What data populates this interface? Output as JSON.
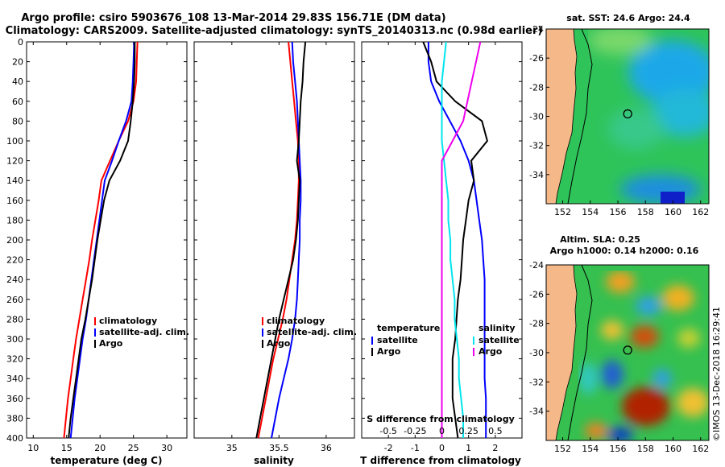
{
  "title": {
    "line1": "Argo profile: csiro 5903676_108 13-Mar-2014 29.83S 156.71E (DM data)",
    "line2": "Climatology: CARS2009. Satellite-adjusted climatology: synTS_20140313.nc (0.98d earlier)"
  },
  "watermark": "©IMOS 13-Dec-2018 16:29:41",
  "colors": {
    "climatology": "#ff0000",
    "satellite": "#0000ff",
    "argo": "#000000",
    "sat_s": "#00e5ee",
    "clim_s": "#ee00ee",
    "land": "#f5b888"
  },
  "chart_data": [
    {
      "id": "temperature",
      "type": "line",
      "xlabel": "temperature (deg C)",
      "xlim": [
        9,
        33
      ],
      "xticks": [
        10,
        15,
        20,
        25,
        30
      ],
      "ylim": [
        0,
        400
      ],
      "yticks": [
        0,
        20,
        40,
        60,
        80,
        100,
        120,
        140,
        160,
        180,
        200,
        220,
        240,
        260,
        280,
        300,
        320,
        340,
        360,
        380,
        400
      ],
      "legend": [
        "climatology",
        "satellite-adj. clim.",
        "Argo"
      ],
      "series": [
        {
          "name": "climatology",
          "color": "#ff0000",
          "x": [
            25.6,
            25.5,
            25.4,
            25.0,
            24.2,
            22.8,
            21.5,
            20.2,
            19.8,
            19.3,
            18.8,
            18.4,
            17.9,
            17.4,
            16.9,
            16.4,
            16.0,
            15.6,
            15.2,
            14.9,
            14.6
          ],
          "y": [
            0,
            20,
            40,
            60,
            80,
            100,
            120,
            140,
            160,
            180,
            200,
            220,
            240,
            260,
            280,
            300,
            320,
            340,
            360,
            380,
            400
          ]
        },
        {
          "name": "satellite-adj. clim.",
          "color": "#0000ff",
          "x": [
            25.1,
            25.0,
            24.9,
            24.7,
            23.9,
            22.8,
            21.8,
            20.7,
            20.3,
            19.9,
            19.5,
            19.1,
            18.7,
            18.3,
            17.9,
            17.4,
            17.0,
            16.6,
            16.2,
            15.9,
            15.6
          ],
          "y": [
            0,
            20,
            40,
            60,
            80,
            100,
            120,
            140,
            160,
            180,
            200,
            220,
            240,
            260,
            280,
            300,
            320,
            340,
            360,
            380,
            400
          ]
        },
        {
          "name": "Argo",
          "color": "#000000",
          "x": [
            25.2,
            25.2,
            25.1,
            24.9,
            24.6,
            24.2,
            23.0,
            21.4,
            20.6,
            20.1,
            19.6,
            19.2,
            18.8,
            18.3,
            17.8,
            17.2,
            16.8,
            16.4,
            16.0,
            15.6,
            15.3
          ],
          "y": [
            0,
            20,
            40,
            60,
            80,
            100,
            120,
            140,
            160,
            180,
            200,
            220,
            240,
            260,
            280,
            300,
            320,
            340,
            360,
            380,
            400
          ]
        }
      ]
    },
    {
      "id": "salinity",
      "type": "line",
      "xlabel": "salinity",
      "xlim": [
        34.6,
        36.3
      ],
      "xticks": [
        35,
        35.5,
        36
      ],
      "ticklabels": [
        "35",
        "35.5",
        "36"
      ],
      "ylim": [
        0,
        400
      ],
      "legend": [
        "climatology",
        "satellite-adj. clim.",
        "Argo"
      ],
      "series": [
        {
          "name": "climatology",
          "color": "#ff0000",
          "x": [
            35.6,
            35.62,
            35.64,
            35.66,
            35.68,
            35.7,
            35.71,
            35.71,
            35.7,
            35.69,
            35.67,
            35.64,
            35.61,
            35.58,
            35.54,
            35.49,
            35.44,
            35.4,
            35.36,
            35.32,
            35.28
          ],
          "y": [
            0,
            20,
            40,
            60,
            80,
            100,
            120,
            140,
            160,
            180,
            200,
            220,
            240,
            260,
            280,
            300,
            320,
            340,
            360,
            380,
            400
          ]
        },
        {
          "name": "satellite-adj. clim.",
          "color": "#0000ff",
          "x": [
            35.64,
            35.65,
            35.67,
            35.69,
            35.7,
            35.71,
            35.72,
            35.73,
            35.73,
            35.72,
            35.72,
            35.71,
            35.7,
            35.69,
            35.67,
            35.64,
            35.6,
            35.55,
            35.5,
            35.46,
            35.42
          ],
          "y": [
            0,
            20,
            40,
            60,
            80,
            100,
            120,
            140,
            160,
            180,
            200,
            220,
            240,
            260,
            280,
            300,
            320,
            340,
            360,
            380,
            400
          ]
        },
        {
          "name": "Argo",
          "color": "#000000",
          "x": [
            35.78,
            35.76,
            35.75,
            35.73,
            35.72,
            35.71,
            35.69,
            35.72,
            35.71,
            35.7,
            35.68,
            35.65,
            35.6,
            35.55,
            35.5,
            35.46,
            35.42,
            35.38,
            35.34,
            35.3,
            35.26
          ],
          "y": [
            0,
            20,
            40,
            60,
            80,
            100,
            120,
            140,
            160,
            180,
            200,
            220,
            240,
            260,
            280,
            300,
            320,
            340,
            360,
            380,
            400
          ]
        }
      ]
    },
    {
      "id": "difference",
      "type": "line",
      "xlabel": "T difference from climatology",
      "xlim": [
        -3,
        3
      ],
      "xticks": [
        -2,
        -1,
        0,
        1,
        2
      ],
      "ylim": [
        0,
        400
      ],
      "s_axis": {
        "label": "S difference from climatology",
        "ticks": [
          -0.5,
          -0.25,
          0,
          0.25,
          0.5
        ],
        "ticklabels": [
          "-0.5",
          "-0.25",
          "0",
          "0.25",
          "0.5"
        ],
        "scale": 4
      },
      "legend": {
        "temperature_header": "temperature",
        "salinity_header": "salinity",
        "left": [
          "satellite",
          "Argo"
        ],
        "right": [
          "satellite",
          "Argo"
        ]
      },
      "series": [
        {
          "name": "T satellite",
          "color": "#0000ff",
          "x": [
            -0.5,
            -0.5,
            -0.4,
            -0.1,
            0.3,
            0.7,
            1.0,
            1.2,
            1.3,
            1.4,
            1.5,
            1.55,
            1.6,
            1.6,
            1.6,
            1.6,
            1.6,
            1.6,
            1.65,
            1.65,
            1.65
          ],
          "y": [
            0,
            20,
            40,
            60,
            80,
            100,
            120,
            140,
            160,
            180,
            200,
            220,
            240,
            260,
            280,
            300,
            320,
            340,
            360,
            380,
            400
          ]
        },
        {
          "name": "T Argo",
          "color": "#000000",
          "x": [
            -0.7,
            -0.4,
            -0.2,
            0.5,
            1.5,
            1.7,
            1.1,
            1.2,
            1.0,
            0.9,
            0.8,
            0.75,
            0.7,
            0.6,
            0.55,
            0.5,
            0.4,
            0.4,
            0.4,
            0.5,
            0.6
          ],
          "y": [
            0,
            20,
            40,
            60,
            80,
            100,
            120,
            140,
            160,
            180,
            200,
            220,
            240,
            260,
            280,
            300,
            320,
            340,
            360,
            380,
            400
          ]
        },
        {
          "name": "S satellite",
          "color": "#00e5ee",
          "x": [
            0.04,
            0.02,
            0.0,
            0.0,
            0.0,
            0.0,
            0.02,
            0.04,
            0.06,
            0.06,
            0.08,
            0.08,
            0.1,
            0.12,
            0.12,
            0.14,
            0.16,
            0.16,
            0.18,
            0.2,
            0.2
          ],
          "y": [
            0,
            20,
            40,
            60,
            80,
            100,
            120,
            140,
            160,
            180,
            200,
            220,
            240,
            260,
            280,
            300,
            320,
            340,
            360,
            380,
            400
          ]
        },
        {
          "name": "S Argo",
          "color": "#ee00ee",
          "x": [
            0.36,
            0.32,
            0.28,
            0.24,
            0.2,
            0.1,
            0.0,
            0.0,
            0.0,
            0.0,
            0.0,
            0.0,
            0.0,
            0.0,
            0.0,
            0.0,
            0.0,
            0.0,
            0.0,
            0.0,
            0.0
          ],
          "y": [
            0,
            20,
            40,
            60,
            80,
            100,
            120,
            140,
            160,
            180,
            200,
            220,
            240,
            260,
            280,
            300,
            320,
            340,
            360,
            380,
            400
          ]
        }
      ]
    },
    {
      "id": "sst_map",
      "type": "heatmap",
      "title": "sat. SST: 24.6 Argo: 24.4",
      "xticks": [
        152,
        154,
        156,
        158,
        160,
        162
      ],
      "yticks": [
        -24,
        -26,
        -28,
        -30,
        -32,
        -34
      ],
      "xlim": [
        150.8,
        162.6
      ],
      "ylim": [
        -36,
        -24
      ],
      "marker": {
        "lon": 156.71,
        "lat": -29.83
      }
    },
    {
      "id": "sla_map",
      "type": "heatmap",
      "title": "Altim. SLA: 0.25",
      "subtitle": "Argo h1000: 0.14 h2000: 0.16",
      "xticks": [
        152,
        154,
        156,
        158,
        160,
        162
      ],
      "yticks": [
        -24,
        -26,
        -28,
        -30,
        -32,
        -34
      ],
      "xlim": [
        150.8,
        162.6
      ],
      "ylim": [
        -36,
        -24
      ],
      "marker": {
        "lon": 156.71,
        "lat": -29.83
      }
    }
  ]
}
